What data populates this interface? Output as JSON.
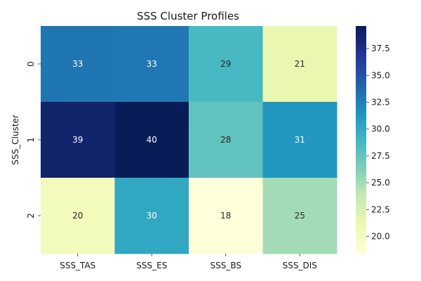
{
  "chart_data": {
    "type": "heatmap",
    "title": "SSS Cluster Profiles",
    "xlabel": "",
    "ylabel": "SSS_Cluster",
    "x_categories": [
      "SSS_TAS",
      "SSS_ES",
      "SSS_BS",
      "SSS_DIS"
    ],
    "y_categories": [
      "0",
      "1",
      "2"
    ],
    "values": [
      [
        33.1,
        33.0,
        28.7,
        21.3
      ],
      [
        38.7,
        39.6,
        27.6,
        31.2
      ],
      [
        20.3,
        30.1,
        18.4,
        25.0
      ]
    ],
    "annotations": [
      [
        "33",
        "33",
        "29",
        "21"
      ],
      [
        "39",
        "40",
        "28",
        "31"
      ],
      [
        "20",
        "30",
        "18",
        "25"
      ]
    ],
    "colormap": "YlGnBu",
    "colorbar": {
      "range": [
        18.4,
        39.6
      ],
      "ticks": [
        20.0,
        22.5,
        25.0,
        27.5,
        30.0,
        32.5,
        35.0,
        37.5
      ],
      "tick_labels": [
        "20.0",
        "22.5",
        "25.0",
        "27.5",
        "30.0",
        "32.5",
        "35.0",
        "37.5"
      ]
    }
  }
}
